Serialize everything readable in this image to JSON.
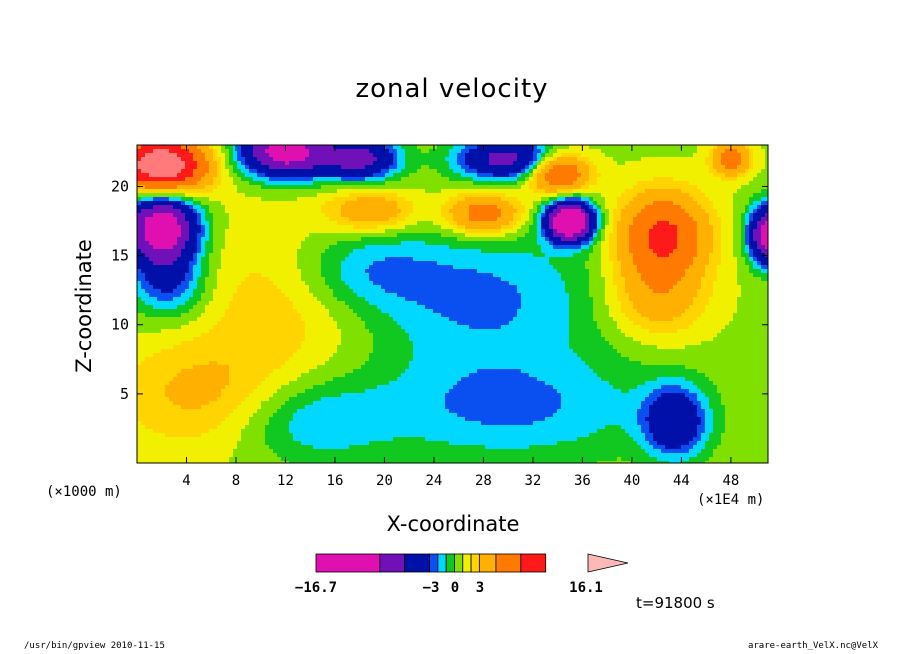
{
  "chart_data": {
    "type": "heatmap",
    "title": "zonal velocity",
    "xlabel": "X-coordinate",
    "ylabel": "Z-coordinate",
    "x_unit_left": "(×1000 m)",
    "x_unit_right": "(×1E4 m)",
    "xlim": [
      0,
      51
    ],
    "ylim": [
      0,
      23
    ],
    "x_ticks": [
      "4",
      "8",
      "12",
      "16",
      "20",
      "24",
      "28",
      "32",
      "36",
      "40",
      "44",
      "48"
    ],
    "y_ticks": [
      "5",
      "10",
      "15",
      "20"
    ],
    "x_tick_values": [
      4,
      8,
      12,
      16,
      20,
      24,
      28,
      32,
      36,
      40,
      44,
      48
    ],
    "y_tick_values": [
      5,
      10,
      15,
      20
    ],
    "timestamp": "t=91800 s",
    "colorbar": {
      "min_label": "−16.7",
      "max_label": "16.1",
      "mid_labels": [
        "−3",
        "0",
        "3"
      ],
      "min": -16.7,
      "max": 16.1,
      "colors": [
        "#e010b0",
        "#7010b8",
        "#0010a8",
        "#0a50f0",
        "#00d8ff",
        "#10c820",
        "#80e000",
        "#f0f000",
        "#ffd400",
        "#ffb000",
        "#ff7a00",
        "#ff1a1a",
        "#ff7a7a"
      ],
      "fill_levels": [
        -16.7,
        -9,
        -6,
        -3,
        -2,
        -1,
        0,
        1,
        2,
        3,
        5,
        8,
        11,
        16.1
      ]
    },
    "field_features": [
      {
        "x": 2,
        "z": 21.5,
        "amp": 14,
        "rx": 3.5,
        "rz": 2.0
      },
      {
        "x": 2,
        "z": 17,
        "amp": -13,
        "rx": 2.8,
        "rz": 2.5
      },
      {
        "x": 2.5,
        "z": 13,
        "amp": -4,
        "rx": 3,
        "rz": 2.5
      },
      {
        "x": 12,
        "z": 22.5,
        "amp": -12,
        "rx": 3.5,
        "rz": 1.8
      },
      {
        "x": 18,
        "z": 22,
        "amp": -8,
        "rx": 3,
        "rz": 1.5
      },
      {
        "x": 35,
        "z": 17.5,
        "amp": -16,
        "rx": 1.8,
        "rz": 1.4
      },
      {
        "x": 30,
        "z": 22,
        "amp": -8,
        "rx": 4,
        "rz": 1.5
      },
      {
        "x": 48,
        "z": 22,
        "amp": 6,
        "rx": 1.5,
        "rz": 1.2
      },
      {
        "x": 51,
        "z": 16.5,
        "amp": -12,
        "rx": 1.5,
        "rz": 2
      },
      {
        "x": 34,
        "z": 21,
        "amp": 8,
        "rx": 2.5,
        "rz": 1.5
      },
      {
        "x": 28,
        "z": 18,
        "amp": 6,
        "rx": 3,
        "rz": 1.5
      },
      {
        "x": 19,
        "z": 18.2,
        "amp": 4,
        "rx": 3.5,
        "rz": 1.5
      },
      {
        "x": 42.5,
        "z": 16.5,
        "amp": 8,
        "rx": 3.5,
        "rz": 3
      },
      {
        "x": 42,
        "z": 12,
        "amp": 3.5,
        "rx": 4,
        "rz": 3
      },
      {
        "x": 43.5,
        "z": 3,
        "amp": -6,
        "rx": 2.5,
        "rz": 2.5
      },
      {
        "x": 5,
        "z": 5,
        "amp": 2.5,
        "rx": 7,
        "rz": 4
      },
      {
        "x": 28,
        "z": 12,
        "amp": -3,
        "rx": 10,
        "rz": 5
      },
      {
        "x": 30,
        "z": 4,
        "amp": -3,
        "rx": 12,
        "rz": 4
      },
      {
        "x": 12,
        "z": 12,
        "amp": 2,
        "rx": 7,
        "rz": 6
      },
      {
        "x": 14,
        "z": 3,
        "amp": -2.5,
        "rx": 6,
        "rz": 3
      },
      {
        "x": 18,
        "z": 14,
        "amp": -2.5,
        "rx": 6,
        "rz": 3
      }
    ],
    "base_value": 0.8,
    "grid": false
  },
  "footer": {
    "left": "/usr/bin/gpview  2010-11-15",
    "right": "arare-earth_VelX.nc@VelX"
  }
}
